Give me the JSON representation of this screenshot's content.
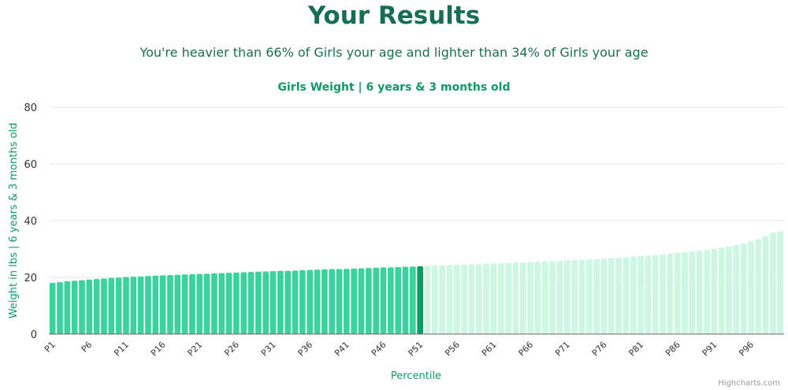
{
  "header": {
    "title": "Your Results",
    "subtitle": "You're heavier than 66% of Girls your age and lighter than 34% of Girls your age"
  },
  "credits": "Highcharts.com",
  "colors": {
    "title": "#186e55",
    "accent": "#0e9a67",
    "bar_below": "#3ad29f",
    "bar_highlight": "#0e9a67",
    "bar_above": "#ccf7e3"
  },
  "chart_data": {
    "type": "bar",
    "title": "Girls Weight | 6 years & 3 months old",
    "xlabel": "Percentile",
    "ylabel": "Weight in lbs | 6 years & 3 months old",
    "ylim": [
      0,
      80
    ],
    "yticks": [
      0,
      20,
      40,
      60,
      80
    ],
    "grid": true,
    "highlight_category": "P51",
    "x_tick_labels": [
      "P1",
      "P6",
      "P11",
      "P16",
      "P21",
      "P26",
      "P31",
      "P36",
      "P41",
      "P46",
      "P51",
      "P56",
      "P61",
      "P66",
      "P71",
      "P76",
      "P81",
      "P86",
      "P91",
      "P96"
    ],
    "categories": [
      "P1",
      "P2",
      "P3",
      "P4",
      "P5",
      "P6",
      "P7",
      "P8",
      "P9",
      "P10",
      "P11",
      "P12",
      "P13",
      "P14",
      "P15",
      "P16",
      "P17",
      "P18",
      "P19",
      "P20",
      "P21",
      "P22",
      "P23",
      "P24",
      "P25",
      "P26",
      "P27",
      "P28",
      "P29",
      "P30",
      "P31",
      "P32",
      "P33",
      "P34",
      "P35",
      "P36",
      "P37",
      "P38",
      "P39",
      "P40",
      "P41",
      "P42",
      "P43",
      "P44",
      "P45",
      "P46",
      "P47",
      "P48",
      "P49",
      "P50",
      "P51",
      "P52",
      "P53",
      "P54",
      "P55",
      "P56",
      "P57",
      "P58",
      "P59",
      "P60",
      "P61",
      "P62",
      "P63",
      "P64",
      "P65",
      "P66",
      "P67",
      "P68",
      "P69",
      "P70",
      "P71",
      "P72",
      "P73",
      "P74",
      "P75",
      "P76",
      "P77",
      "P78",
      "P79",
      "P80",
      "P81",
      "P82",
      "P83",
      "P84",
      "P85",
      "P86",
      "P87",
      "P88",
      "P89",
      "P90",
      "P91",
      "P92",
      "P93",
      "P94",
      "P95",
      "P96",
      "P97",
      "P98",
      "P99",
      "P100"
    ],
    "values": [
      18.1,
      18.3,
      18.6,
      18.8,
      19.0,
      19.2,
      19.4,
      19.6,
      19.8,
      19.9,
      20.1,
      20.2,
      20.3,
      20.5,
      20.6,
      20.7,
      20.8,
      20.9,
      21.0,
      21.1,
      21.2,
      21.3,
      21.4,
      21.5,
      21.6,
      21.7,
      21.8,
      21.9,
      22.0,
      22.1,
      22.2,
      22.3,
      22.3,
      22.4,
      22.5,
      22.6,
      22.7,
      22.8,
      22.9,
      22.9,
      23.0,
      23.1,
      23.2,
      23.3,
      23.4,
      23.5,
      23.5,
      23.6,
      23.7,
      23.8,
      23.9,
      24.0,
      24.1,
      24.2,
      24.3,
      24.4,
      24.5,
      24.6,
      24.7,
      24.8,
      24.9,
      25.0,
      25.1,
      25.2,
      25.3,
      25.4,
      25.5,
      25.6,
      25.7,
      25.8,
      26.0,
      26.1,
      26.2,
      26.3,
      26.5,
      26.6,
      26.8,
      26.9,
      27.1,
      27.3,
      27.5,
      27.7,
      27.9,
      28.1,
      28.3,
      28.6,
      28.8,
      29.1,
      29.4,
      29.7,
      30.1,
      30.5,
      30.9,
      31.4,
      32.0,
      32.7,
      33.5,
      34.5,
      35.8,
      36.3
    ]
  }
}
